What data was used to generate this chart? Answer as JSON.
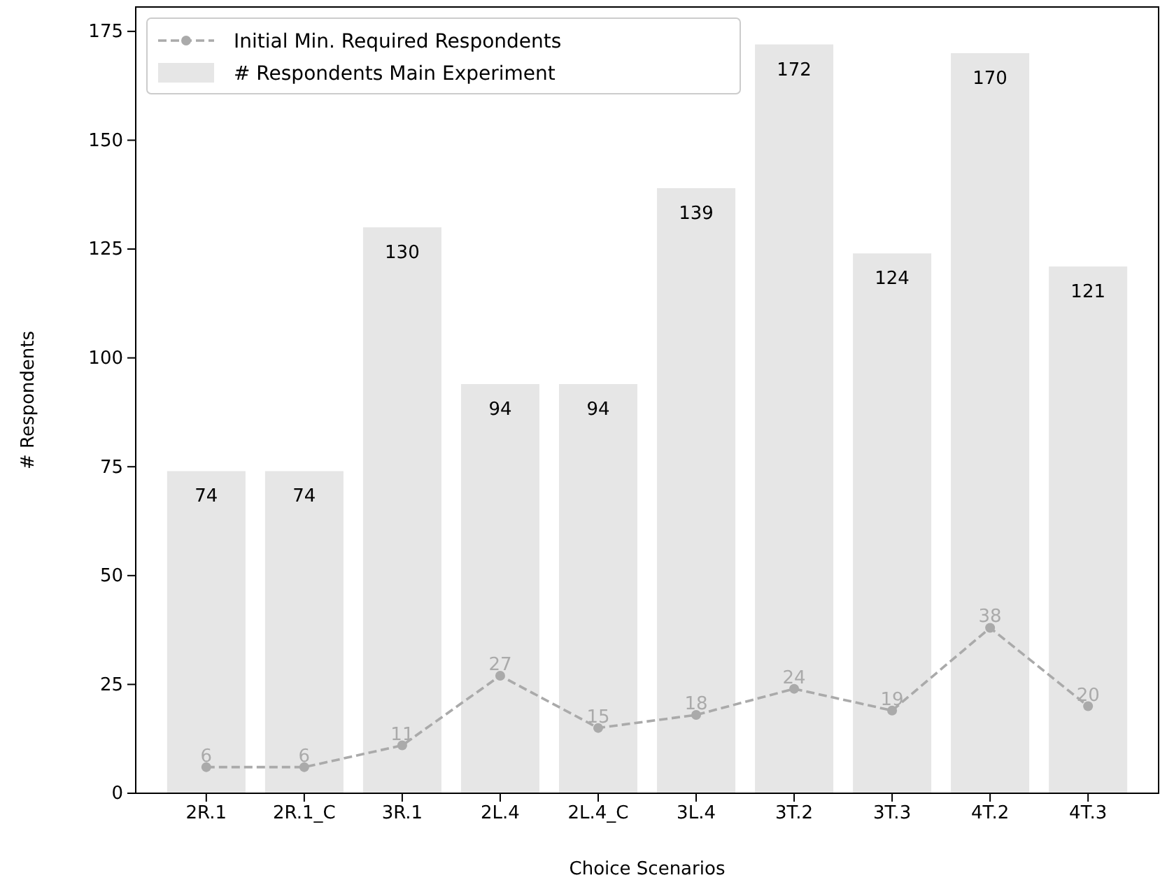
{
  "chart_data": {
    "type": "bar",
    "xlabel": "Choice Scenarios",
    "ylabel": "# Respondents",
    "categories": [
      "2R.1",
      "2R.1_C",
      "3R.1",
      "2L.4",
      "2L.4_C",
      "3L.4",
      "3T.2",
      "3T.3",
      "4T.2",
      "4T.3"
    ],
    "series": [
      {
        "name": "Initial Min. Required Respondents",
        "type": "line",
        "color": "#aaaaaa",
        "values": [
          6,
          6,
          11,
          27,
          15,
          18,
          24,
          19,
          38,
          20
        ]
      },
      {
        "name": "# Respondents Main Experiment",
        "color": "#e6e6e6",
        "values": [
          74,
          74,
          130,
          94,
          94,
          139,
          172,
          124,
          170,
          121
        ]
      }
    ],
    "ylim": [
      0,
      180.6
    ],
    "yticks": [
      0,
      25,
      50,
      75,
      100,
      125,
      150,
      175
    ],
    "data_labels": true,
    "legend": "top left",
    "marker": "circle",
    "line_style": "dashed",
    "grid": false
  }
}
